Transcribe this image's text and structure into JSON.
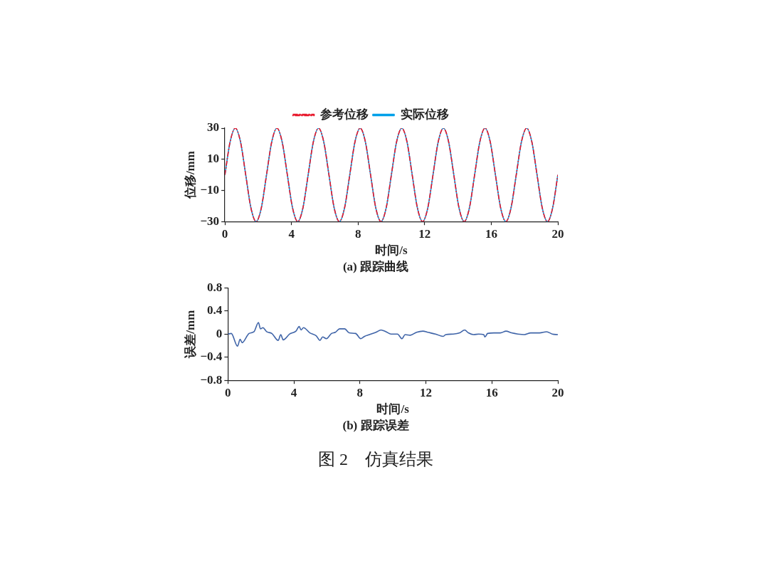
{
  "chart_data": [
    {
      "type": "line",
      "xlabel": "时间/s",
      "ylabel": "位移/mm",
      "legend": "top",
      "xlim": [
        0,
        20
      ],
      "ylim": [
        -30,
        30
      ],
      "xticks": [
        0,
        4,
        8,
        12,
        16,
        20
      ],
      "yticks": [
        -30,
        -10,
        10,
        30
      ],
      "annotations": [
        "(a) 跟踪曲线"
      ],
      "x": [
        0,
        0.3125,
        0.625,
        0.9375,
        1.25,
        1.5625,
        1.875,
        2.1875,
        2.5,
        2.8125,
        3.125,
        3.4375,
        3.75,
        4.0625,
        4.375,
        4.6875,
        5,
        5.3125,
        5.625,
        5.9375,
        6.25,
        6.5625,
        6.875,
        7.1875,
        7.5,
        7.8125,
        8.125,
        8.4375,
        8.75,
        9.0625,
        9.375,
        9.6875,
        10,
        10.3125,
        10.625,
        10.9375,
        11.25,
        11.5625,
        11.875,
        12.1875,
        12.5,
        12.8125,
        13.125,
        13.4375,
        13.75,
        14.0625,
        14.375,
        14.6875,
        15,
        15.3125,
        15.625,
        15.9375,
        16.25,
        16.5625,
        16.875,
        17.1875,
        17.5,
        17.8125,
        18.125,
        18.4375,
        18.75,
        19.0625,
        19.375,
        19.6875,
        20
      ],
      "series": [
        {
          "name": "实际位移",
          "color": "#00a0e9",
          "line_style": "solid",
          "values": [
            0,
            21.2,
            30,
            21.2,
            0,
            -21.2,
            -30,
            -21.2,
            0,
            21.2,
            30,
            21.2,
            0,
            -21.2,
            -30,
            -21.2,
            0,
            21.2,
            30,
            21.2,
            0,
            -21.2,
            -30,
            -21.2,
            0,
            21.2,
            30,
            21.2,
            0,
            -21.2,
            -30,
            -21.2,
            0,
            21.2,
            30,
            21.2,
            0,
            -21.2,
            -30,
            -21.2,
            0,
            21.2,
            30,
            21.2,
            0,
            -21.2,
            -30,
            -21.2,
            0,
            21.2,
            30,
            21.2,
            0,
            -21.2,
            -30,
            -21.2,
            0,
            21.2,
            30,
            21.2,
            0,
            -21.2,
            -30,
            -21.2,
            0
          ]
        },
        {
          "name": "参考位移",
          "color": "#e8192c",
          "line_style": "dashed",
          "values": [
            0,
            21.2,
            30,
            21.2,
            0,
            -21.2,
            -30,
            -21.2,
            0,
            21.2,
            30,
            21.2,
            0,
            -21.2,
            -30,
            -21.2,
            0,
            21.2,
            30,
            21.2,
            0,
            -21.2,
            -30,
            -21.2,
            0,
            21.2,
            30,
            21.2,
            0,
            -21.2,
            -30,
            -21.2,
            0,
            21.2,
            30,
            21.2,
            0,
            -21.2,
            -30,
            -21.2,
            0,
            21.2,
            30,
            21.2,
            0,
            -21.2,
            -30,
            -21.2,
            0,
            21.2,
            30,
            21.2,
            0,
            -21.2,
            -30,
            -21.2,
            0,
            21.2,
            30,
            21.2,
            0,
            -21.2,
            -30,
            -21.2,
            0
          ]
        }
      ]
    },
    {
      "type": "line",
      "xlabel": "时间/s",
      "ylabel": "误差/mm",
      "xlim": [
        0,
        20
      ],
      "ylim": [
        -0.8,
        0.8
      ],
      "xticks": [
        0,
        4,
        8,
        12,
        16,
        20
      ],
      "yticks": [
        -0.8,
        -0.4,
        0,
        0.4,
        0.8
      ],
      "annotations": [
        "(b) 跟踪误差",
        "图 2　仿真结果"
      ],
      "x": [
        0,
        0.2,
        0.58,
        0.74,
        0.86,
        1.28,
        1.58,
        1.85,
        1.97,
        2.12,
        2.35,
        2.66,
        3.05,
        3.2,
        3.35,
        3.74,
        4.12,
        4.32,
        4.43,
        4.58,
        4.97,
        5.35,
        5.58,
        5.74,
        5.97,
        6.28,
        6.51,
        6.77,
        7.08,
        7.35,
        7.74,
        8.05,
        8.28,
        8.58,
        8.97,
        9.28,
        9.58,
        9.89,
        10.28,
        10.55,
        10.74,
        11.05,
        11.43,
        11.82,
        12.12,
        12.58,
        13.05,
        13.2,
        13.66,
        14.05,
        14.35,
        14.58,
        14.89,
        15.2,
        15.51,
        15.58,
        15.74,
        16.12,
        16.51,
        16.86,
        17.2,
        17.58,
        17.97,
        18.35,
        18.89,
        19.32,
        19.66,
        20
      ],
      "series": [
        {
          "color": "#3f64a8",
          "values": [
            0,
            0.01,
            -0.21,
            -0.09,
            -0.15,
            0.01,
            0.04,
            0.2,
            0.09,
            0.11,
            0.04,
            0.01,
            -0.11,
            -0.01,
            -0.1,
            0,
            0.05,
            0.13,
            0.07,
            0.11,
            0.02,
            -0.03,
            -0.11,
            -0.05,
            -0.08,
            0.01,
            0.03,
            0.09,
            0.09,
            0.02,
            0.01,
            -0.08,
            -0.04,
            -0.01,
            0.03,
            0.07,
            0.04,
            0,
            0,
            -0.08,
            -0.01,
            -0.02,
            0.03,
            0.05,
            0.03,
            0,
            -0.04,
            -0.01,
            0,
            0.02,
            0.07,
            0.02,
            -0.01,
            0,
            -0.01,
            -0.05,
            0.01,
            0.02,
            0.02,
            0.05,
            0.02,
            0,
            -0.01,
            0.02,
            0.02,
            0.04,
            0,
            -0.01
          ]
        }
      ]
    }
  ]
}
